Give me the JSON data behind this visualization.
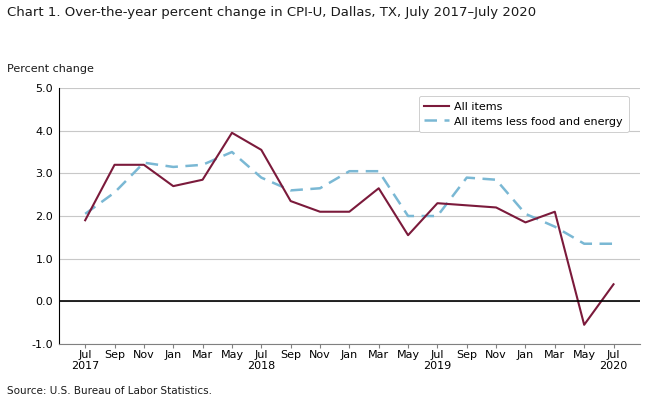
{
  "title": "Chart 1. Over-the-year percent change in CPI-U, Dallas, TX, July 2017–July 2020",
  "ylabel": "Percent change",
  "source": "Source: U.S. Bureau of Labor Statistics.",
  "ylim": [
    -1.0,
    5.0
  ],
  "yticks": [
    -1.0,
    0.0,
    1.0,
    2.0,
    3.0,
    4.0,
    5.0
  ],
  "x_labels": [
    "Jul\n2017",
    "Sep",
    "Nov",
    "Jan",
    "Mar",
    "May",
    "Jul\n2018",
    "Sep",
    "Nov",
    "Jan",
    "Mar",
    "May",
    "Jul\n2019",
    "Sep",
    "Nov",
    "Jan",
    "Mar",
    "May",
    "Jul\n2020"
  ],
  "all_items": [
    1.9,
    3.2,
    3.2,
    2.7,
    2.85,
    3.95,
    3.55,
    2.35,
    2.1,
    2.1,
    2.65,
    1.55,
    2.3,
    2.25,
    2.2,
    1.85,
    2.1,
    -0.55,
    0.4
  ],
  "all_items_less": [
    2.05,
    2.55,
    3.25,
    3.15,
    3.2,
    3.5,
    2.9,
    2.6,
    2.65,
    3.05,
    3.05,
    2.0,
    2.0,
    2.9,
    2.85,
    2.05,
    1.75,
    1.35,
    1.35
  ],
  "color_all_items": "#7b1a3b",
  "color_less": "#7ab8d4",
  "bg_color": "#ffffff",
  "grid_color": "#c8c8c8",
  "title_fontsize": 9.5,
  "label_fontsize": 8.0,
  "tick_fontsize": 8.0,
  "source_fontsize": 7.5,
  "legend_fontsize": 8.0
}
